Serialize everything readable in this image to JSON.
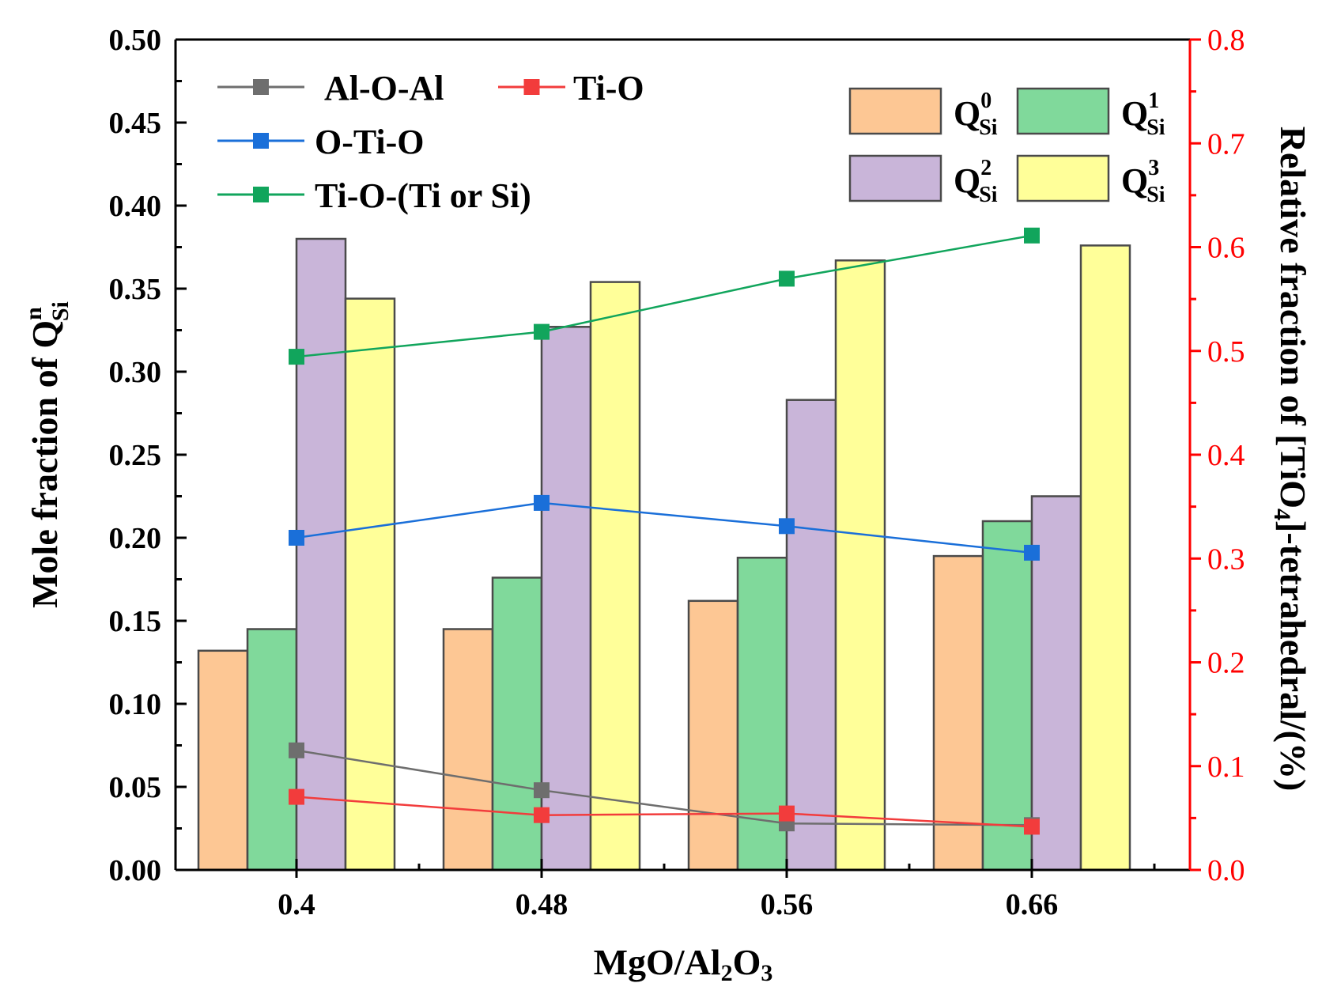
{
  "chart_data": {
    "type": "bar",
    "categories": [
      "0.4",
      "0.48",
      "0.56",
      "0.66"
    ],
    "xlabel": {
      "main": "MgO/Al",
      "sub1": "2",
      "mid": "O",
      "sub2": "3"
    },
    "ylabel": {
      "main": "Mole fraction of Q",
      "sub": "Si",
      "sup": "n"
    },
    "y2label": {
      "main": "Relative fraction of [TiO",
      "sub": "4",
      "rest": "]-tetrahedral/(%)"
    },
    "ylim": [
      0,
      0.5
    ],
    "y2lim": [
      0,
      0.8
    ],
    "y_ticks": [
      "0.00",
      "0.05",
      "0.10",
      "0.15",
      "0.20",
      "0.25",
      "0.30",
      "0.35",
      "0.40",
      "0.45",
      "0.50"
    ],
    "y2_ticks": [
      "0.0",
      "0.1",
      "0.2",
      "0.3",
      "0.4",
      "0.5",
      "0.6",
      "0.7",
      "0.8"
    ],
    "bar_series": [
      {
        "name": "Q",
        "sup": "0",
        "sub": "Si",
        "color": "#fdc794",
        "values": [
          0.132,
          0.145,
          0.162,
          0.189
        ]
      },
      {
        "name": "Q",
        "sup": "1",
        "sub": "Si",
        "color": "#80d99b",
        "values": [
          0.145,
          0.176,
          0.188,
          0.21
        ]
      },
      {
        "name": "Q",
        "sup": "2",
        "sub": "Si",
        "color": "#c9b5d9",
        "values": [
          0.38,
          0.327,
          0.283,
          0.225
        ]
      },
      {
        "name": "Q",
        "sup": "3",
        "sub": "Si",
        "color": "#ffff99",
        "values": [
          0.344,
          0.354,
          0.367,
          0.376
        ]
      }
    ],
    "line_series": [
      {
        "name": "Al-O-Al",
        "color": "#6e6e6e",
        "axis": "left",
        "values": [
          0.072,
          0.048,
          0.028,
          0.027
        ]
      },
      {
        "name": "Ti-O",
        "color": "#f23c3c",
        "axis": "left",
        "values": [
          0.044,
          0.033,
          0.034,
          0.026
        ]
      },
      {
        "name": "O-Ti-O",
        "color": "#1a6fd9",
        "axis": "left",
        "values": [
          0.2,
          0.221,
          0.207,
          0.191
        ]
      },
      {
        "name": "Ti-O-(Ti or Si)",
        "color": "#11a55c",
        "axis": "left",
        "values": [
          0.309,
          0.324,
          0.356,
          0.382
        ]
      }
    ],
    "bar_border_color": "#4a4a4a",
    "right_axis_color": "#ff0000"
  }
}
